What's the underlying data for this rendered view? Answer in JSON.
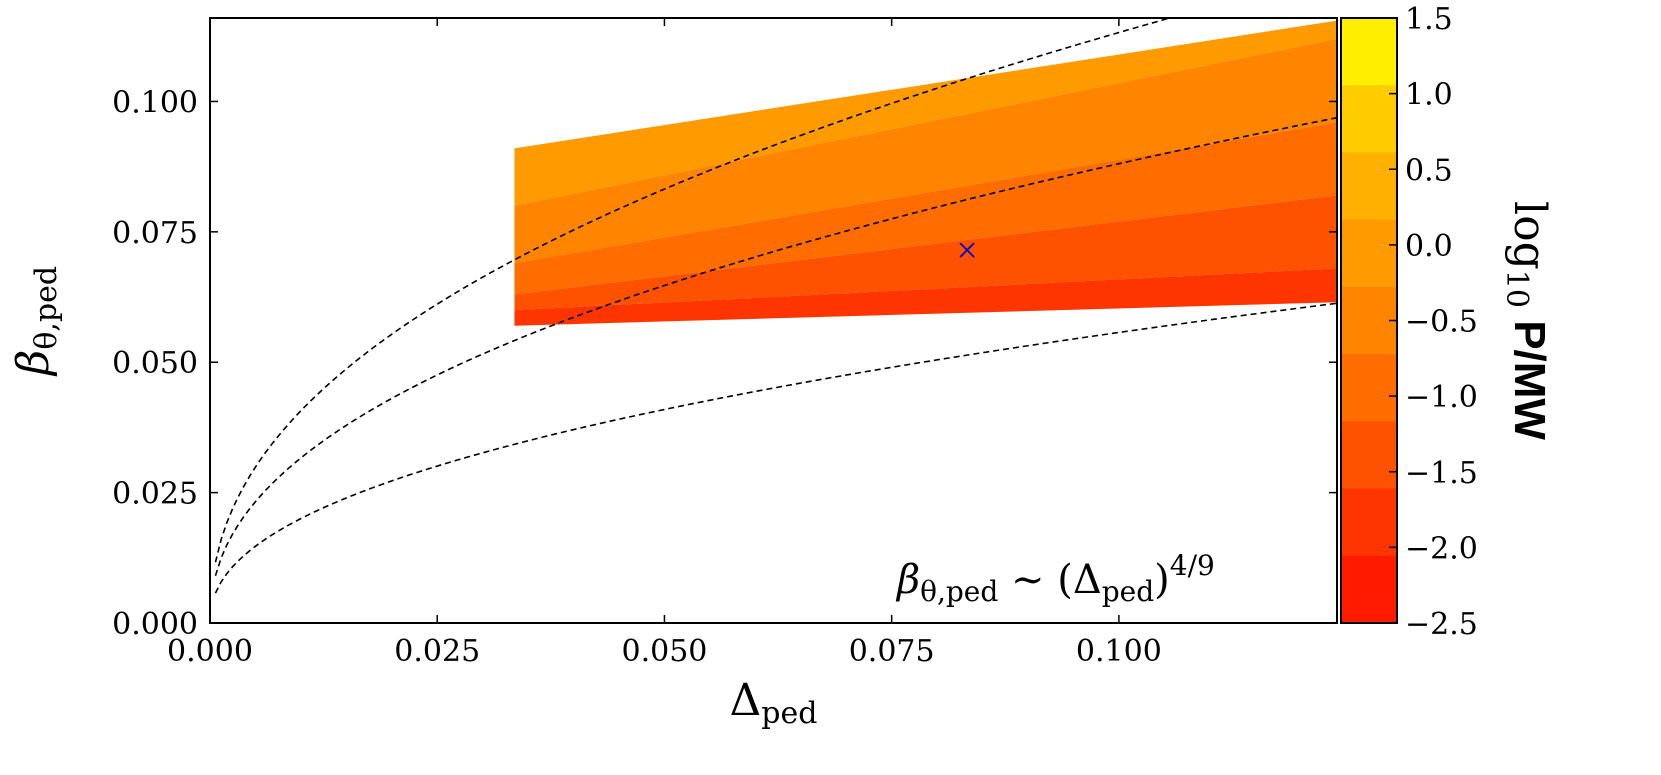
{
  "chart_data": {
    "type": "contourf",
    "xlabel": "Δ",
    "xlabel_sub": "ped",
    "ylabel": "β",
    "ylabel_sub": "θ,ped",
    "xlim": [
      0.0,
      0.124
    ],
    "ylim": [
      0.0,
      0.116
    ],
    "x_ticks": [
      "0.000",
      "0.025",
      "0.050",
      "0.075",
      "0.100"
    ],
    "x_tick_values": [
      0.0,
      0.025,
      0.05,
      0.075,
      0.1
    ],
    "y_ticks": [
      "0.000",
      "0.025",
      "0.050",
      "0.075",
      "0.100"
    ],
    "y_tick_values": [
      0.0,
      0.025,
      0.05,
      0.075,
      0.1
    ],
    "colorbar": {
      "label": "log",
      "label_sub": "10",
      "label_rest": " P/MW",
      "levels": [
        1.5,
        1.0,
        0.5,
        0.0,
        -0.5,
        -1.0,
        -1.5,
        -2.0,
        -2.5
      ],
      "tick_labels": [
        "1.5",
        "1.0",
        "0.5",
        "0.0",
        "−0.5",
        "−1.0",
        "−1.5",
        "−2.0",
        "−2.5"
      ],
      "colors": [
        "#ffee00",
        "#ffcc00",
        "#ffb000",
        "#ff9a00",
        "#ff8500",
        "#ff6d00",
        "#ff5200",
        "#ff3500",
        "#ff1a00"
      ]
    },
    "annotation": {
      "text": "β",
      "sub": "θ,ped",
      "rest": " ∼ (Δ",
      "sub2": "ped",
      "close": ")",
      "sup": "4/9"
    },
    "marker": {
      "symbol": "x",
      "x": 0.0833,
      "y": 0.0715,
      "color": "#0000cc"
    },
    "scaling_curves": {
      "exponent": 0.4444,
      "coefficients": [
        0.315,
        0.245,
        0.155
      ]
    },
    "contour_bands": [
      {
        "level": 0.0,
        "x": [
          0.0335,
          0.124
        ],
        "y_low": [
          0.08,
          0.112
        ],
        "y_high": [
          0.091,
          0.1155
        ]
      },
      {
        "level": -0.5,
        "x": [
          0.0335,
          0.124
        ],
        "y_low": [
          0.069,
          0.096
        ],
        "y_high": [
          0.08,
          0.112
        ]
      },
      {
        "level": -1.0,
        "x": [
          0.0335,
          0.124
        ],
        "y_low": [
          0.063,
          0.082
        ],
        "y_high": [
          0.069,
          0.096
        ]
      },
      {
        "level": -1.5,
        "x": [
          0.0335,
          0.124
        ],
        "y_low": [
          0.06,
          0.068
        ],
        "y_high": [
          0.063,
          0.082
        ]
      },
      {
        "level": -2.0,
        "x": [
          0.0335,
          0.124
        ],
        "y_low": [
          0.057,
          0.0615
        ],
        "y_high": [
          0.06,
          0.068
        ]
      }
    ]
  }
}
